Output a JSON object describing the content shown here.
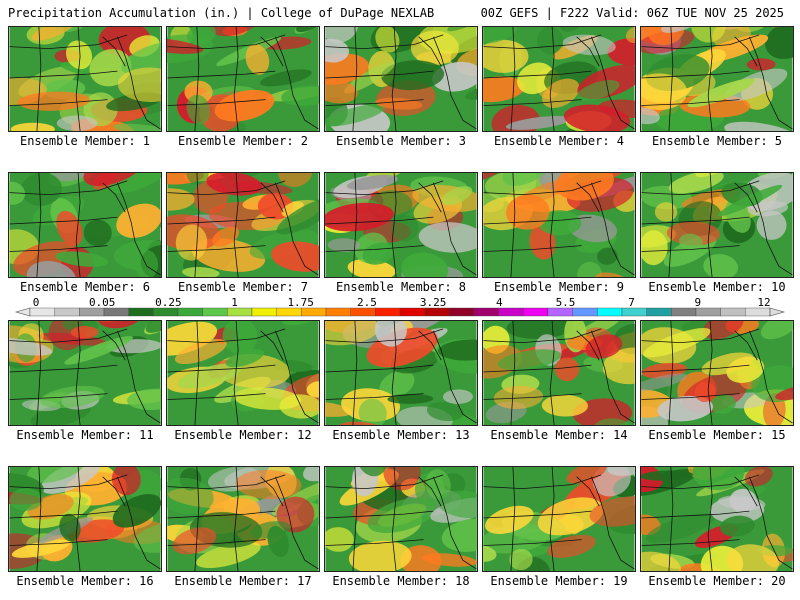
{
  "header": {
    "left_title": "Precipitation Accumulation (in.) | College of DuPage NEXLAB",
    "right_title": "00Z GEFS | F222 Valid: 06Z TUE NOV 25 2025"
  },
  "members": [
    {
      "label": "Ensemble Member: 1"
    },
    {
      "label": "Ensemble Member: 2"
    },
    {
      "label": "Ensemble Member: 3"
    },
    {
      "label": "Ensemble Member: 4"
    },
    {
      "label": "Ensemble Member: 5"
    },
    {
      "label": "Ensemble Member: 6"
    },
    {
      "label": "Ensemble Member: 7"
    },
    {
      "label": "Ensemble Member: 8"
    },
    {
      "label": "Ensemble Member: 9"
    },
    {
      "label": "Ensemble Member: 10"
    },
    {
      "label": "Ensemble Member: 11"
    },
    {
      "label": "Ensemble Member: 12"
    },
    {
      "label": "Ensemble Member: 13"
    },
    {
      "label": "Ensemble Member: 14"
    },
    {
      "label": "Ensemble Member: 15"
    },
    {
      "label": "Ensemble Member: 16"
    },
    {
      "label": "Ensemble Member: 17"
    },
    {
      "label": "Ensemble Member: 18"
    },
    {
      "label": "Ensemble Member: 19"
    },
    {
      "label": "Ensemble Member: 20"
    }
  ],
  "colorbar": {
    "tick_labels": [
      "0",
      "0.05",
      "0.25",
      "1",
      "1.75",
      "2.5",
      "3.25",
      "4",
      "5.5",
      "7",
      "9",
      "12"
    ],
    "colors": [
      "#e6e6e6",
      "#c8c8c8",
      "#a0a0a0",
      "#787878",
      "#1e6e1e",
      "#2e8b2e",
      "#3ca83c",
      "#5cc84a",
      "#a8e040",
      "#f0f000",
      "#ffd700",
      "#ffaa00",
      "#ff8000",
      "#ff5000",
      "#ff2000",
      "#e00000",
      "#b40000",
      "#900028",
      "#a0006e",
      "#c800c8",
      "#f000f0",
      "#b464ff",
      "#6496ff",
      "#00ffff",
      "#40d0d0",
      "#20a0a0",
      "#808080",
      "#a0a0a0",
      "#c0c0c0",
      "#dcdcdc"
    ]
  }
}
